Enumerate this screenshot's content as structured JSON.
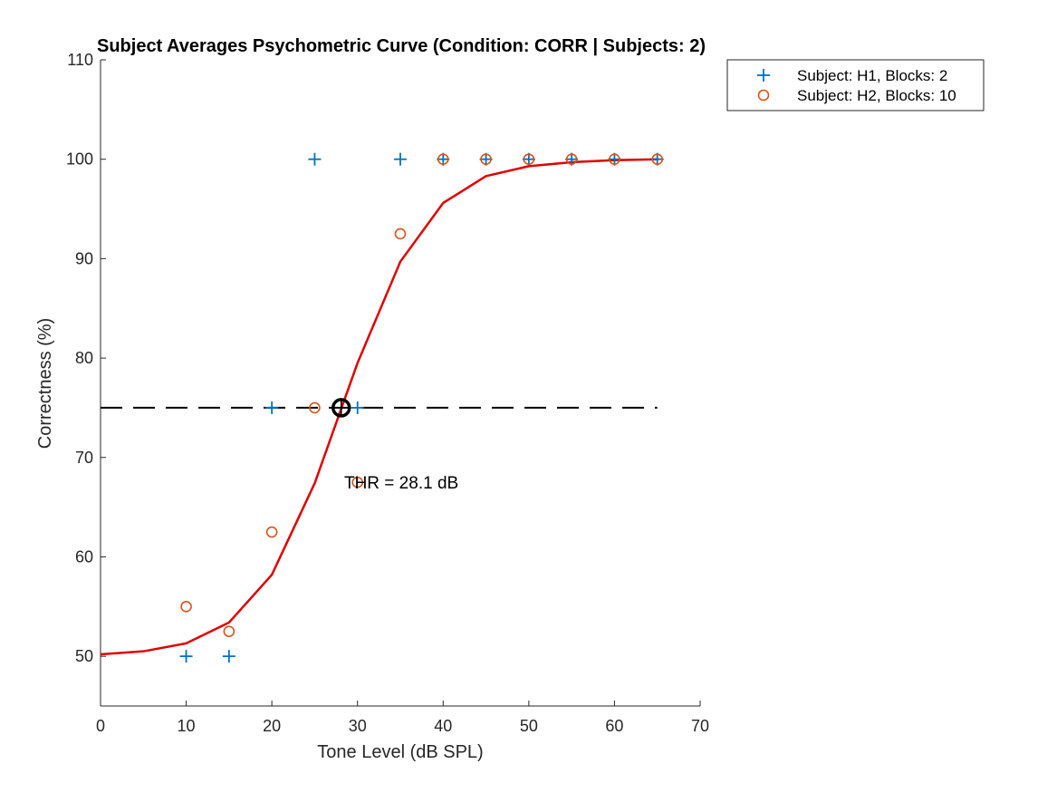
{
  "chart_data": {
    "type": "scatter",
    "title": "Subject Averages Psychometric Curve (Condition: CORR | Subjects: 2)",
    "xlabel": "Tone Level (dB SPL)",
    "ylabel": "Correctness (%)",
    "xlim": [
      0,
      70
    ],
    "ylim": [
      45,
      110
    ],
    "xticks": [
      0,
      10,
      20,
      30,
      40,
      50,
      60,
      70
    ],
    "yticks": [
      50,
      60,
      70,
      80,
      90,
      100,
      110
    ],
    "grid": false,
    "legend_position": "outside-top-right",
    "series": [
      {
        "name": "Subject: H1, Blocks: 2",
        "marker": "plus",
        "color": "#0072BD",
        "x": [
          10,
          15,
          20,
          25,
          30,
          35,
          40,
          45,
          50,
          55,
          60,
          65
        ],
        "y": [
          50,
          50,
          75,
          100,
          75,
          100,
          100,
          100,
          100,
          100,
          100,
          100
        ]
      },
      {
        "name": "Subject: H2, Blocks: 10",
        "marker": "circle",
        "color": "#D95319",
        "x": [
          10,
          15,
          20,
          25,
          30,
          35,
          40,
          45,
          50,
          55,
          60,
          65
        ],
        "y": [
          55,
          52.5,
          62.5,
          75,
          67.5,
          92.5,
          100,
          100,
          100,
          100,
          100,
          100
        ]
      }
    ],
    "fit_curve": {
      "color": "#E00000",
      "x": [
        0,
        5,
        10,
        15,
        20,
        25,
        30,
        35,
        40,
        45,
        50,
        55,
        60,
        65
      ],
      "y": [
        50.2,
        50.5,
        51.3,
        53.4,
        58.2,
        67.4,
        79.5,
        89.7,
        95.6,
        98.3,
        99.3,
        99.7,
        99.9,
        100
      ]
    },
    "threshold_line": {
      "y": 75,
      "x_range": [
        0,
        65
      ],
      "style": "dashed",
      "color": "#000000"
    },
    "threshold_point": {
      "x": 28.1,
      "y": 75
    },
    "annotation": {
      "text": "THR = 28.1 dB",
      "x": 29.5,
      "y": 67.5
    }
  }
}
